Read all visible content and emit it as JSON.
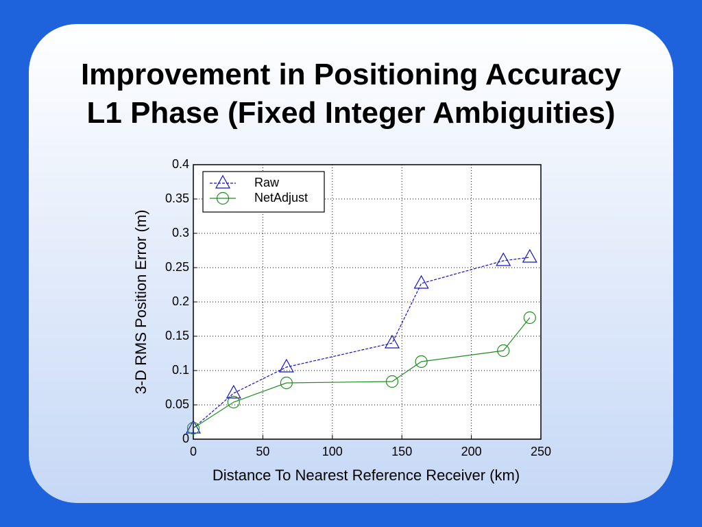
{
  "title": [
    "Improvement in Positioning Accuracy",
    "L1 Phase (Fixed Integer Ambiguities)"
  ],
  "chart_data": {
    "type": "line",
    "xlabel": "Distance To Nearest Reference Receiver (km)",
    "ylabel": "3-D RMS Position Error (m)",
    "xlim": [
      0,
      250
    ],
    "xticks": [
      0,
      50,
      100,
      150,
      200,
      250
    ],
    "ylim": [
      0,
      0.4
    ],
    "yticks": [
      0,
      0.05,
      0.1,
      0.15,
      0.2,
      0.25,
      0.3,
      0.35,
      0.4
    ],
    "grid": true,
    "legend": "upper left",
    "series": [
      {
        "name": "Raw",
        "color": "#1010c8",
        "marker": "triangle",
        "linestyle": "dashed",
        "x": [
          0,
          29,
          67,
          143,
          164,
          223,
          242
        ],
        "values": [
          0.016,
          0.067,
          0.105,
          0.14,
          0.227,
          0.26,
          0.265
        ]
      },
      {
        "name": "NetAdjust",
        "color": "#1e8c1e",
        "marker": "circle",
        "linestyle": "solid",
        "x": [
          0,
          29,
          67,
          143,
          164,
          223,
          242
        ],
        "values": [
          0.016,
          0.054,
          0.082,
          0.084,
          0.113,
          0.129,
          0.177
        ]
      }
    ]
  }
}
